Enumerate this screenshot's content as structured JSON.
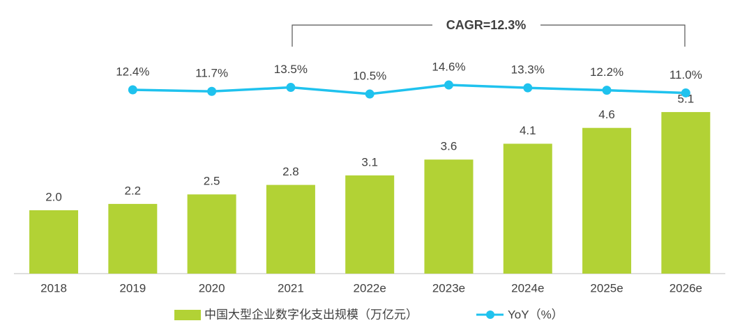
{
  "chart_data": {
    "type": "bar",
    "annotation": "CAGR=12.3%",
    "categories": [
      "2018",
      "2019",
      "2020",
      "2021",
      "2022e",
      "2023e",
      "2024e",
      "2025e",
      "2026e"
    ],
    "series": [
      {
        "name": "中国大型企业数字化支出规模（万亿元）",
        "type": "bar",
        "color": "#b2d235",
        "values": [
          2.0,
          2.2,
          2.5,
          2.8,
          3.1,
          3.6,
          4.1,
          4.6,
          5.1
        ],
        "value_labels": [
          "2.0",
          "2.2",
          "2.5",
          "2.8",
          "3.1",
          "3.6",
          "4.1",
          "4.6",
          "5.1"
        ]
      },
      {
        "name": "YoY（%）",
        "type": "line",
        "axis": "y2",
        "color": "#1fc2ee",
        "values": [
          null,
          12.4,
          11.7,
          13.5,
          10.5,
          14.6,
          13.3,
          12.2,
          11.0
        ],
        "value_labels": [
          null,
          "12.4%",
          "11.7%",
          "13.5%",
          "10.5%",
          "14.6%",
          "13.3%",
          "12.2%",
          "11.0%"
        ]
      }
    ],
    "ylim": [
      0,
      8
    ],
    "y2lim": [
      -71,
      44
    ]
  }
}
